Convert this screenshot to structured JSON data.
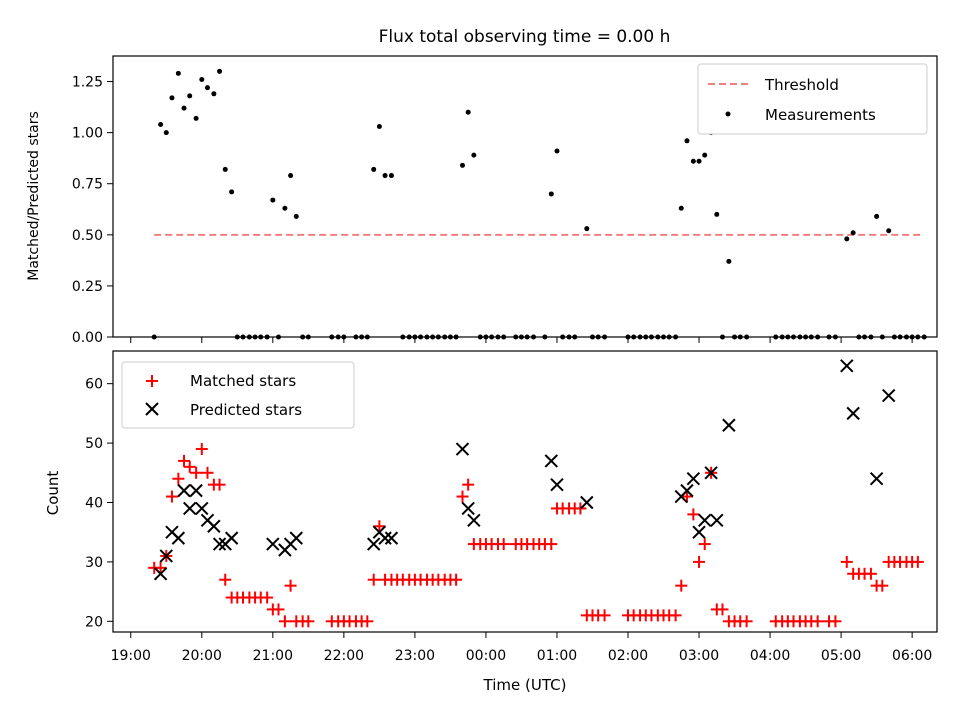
{
  "chart_data": [
    {
      "type": "scatter",
      "title": "Flux total observing time = 0.00 h",
      "ylabel": "Matched/Predicted stars",
      "xlabel": "",
      "ylim": [
        0,
        1.375
      ],
      "xlim": [
        -0.25,
        11.35
      ],
      "grid": false,
      "legend_position": "top-right",
      "yticks": [
        "0.00",
        "0.25",
        "0.50",
        "0.75",
        "1.00",
        "1.25"
      ],
      "threshold": {
        "name": "Threshold",
        "value": 0.5,
        "x_start": 0.33,
        "x_end": 11.17,
        "color": "#f08080",
        "style": "dashed"
      },
      "series": [
        {
          "name": "Measurements",
          "marker": "dot",
          "color": "#000000",
          "points": [
            [
              0.33,
              0.0
            ],
            [
              0.42,
              1.04
            ],
            [
              0.5,
              1.0
            ],
            [
              0.58,
              1.17
            ],
            [
              0.67,
              1.29
            ],
            [
              0.75,
              1.12
            ],
            [
              0.83,
              1.18
            ],
            [
              0.92,
              1.07
            ],
            [
              1.0,
              1.26
            ],
            [
              1.08,
              1.22
            ],
            [
              1.17,
              1.19
            ],
            [
              1.25,
              1.3
            ],
            [
              1.33,
              0.82
            ],
            [
              1.42,
              0.71
            ],
            [
              1.5,
              0.0
            ],
            [
              1.58,
              0.0
            ],
            [
              1.67,
              0.0
            ],
            [
              1.75,
              0.0
            ],
            [
              1.83,
              0.0
            ],
            [
              1.92,
              0.0
            ],
            [
              2.0,
              0.67
            ],
            [
              2.08,
              0.0
            ],
            [
              2.17,
              0.63
            ],
            [
              2.25,
              0.79
            ],
            [
              2.33,
              0.59
            ],
            [
              2.42,
              0.0
            ],
            [
              2.5,
              0.0
            ],
            [
              2.83,
              0.0
            ],
            [
              2.92,
              0.0
            ],
            [
              3.0,
              0.0
            ],
            [
              3.17,
              0.0
            ],
            [
              3.25,
              0.0
            ],
            [
              3.33,
              0.0
            ],
            [
              3.42,
              0.82
            ],
            [
              3.5,
              1.03
            ],
            [
              3.58,
              0.79
            ],
            [
              3.67,
              0.79
            ],
            [
              3.83,
              0.0
            ],
            [
              3.92,
              0.0
            ],
            [
              4.0,
              0.0
            ],
            [
              4.08,
              0.0
            ],
            [
              4.17,
              0.0
            ],
            [
              4.25,
              0.0
            ],
            [
              4.33,
              0.0
            ],
            [
              4.42,
              0.0
            ],
            [
              4.5,
              0.0
            ],
            [
              4.58,
              0.0
            ],
            [
              4.67,
              0.84
            ],
            [
              4.75,
              1.1
            ],
            [
              4.83,
              0.89
            ],
            [
              4.92,
              0.0
            ],
            [
              5.0,
              0.0
            ],
            [
              5.08,
              0.0
            ],
            [
              5.17,
              0.0
            ],
            [
              5.25,
              0.0
            ],
            [
              5.42,
              0.0
            ],
            [
              5.5,
              0.0
            ],
            [
              5.58,
              0.0
            ],
            [
              5.67,
              0.0
            ],
            [
              5.83,
              0.0
            ],
            [
              5.92,
              0.7
            ],
            [
              6.0,
              0.91
            ],
            [
              6.08,
              0.0
            ],
            [
              6.17,
              0.0
            ],
            [
              6.25,
              0.0
            ],
            [
              6.42,
              0.53
            ],
            [
              6.5,
              0.0
            ],
            [
              6.58,
              0.0
            ],
            [
              6.67,
              0.0
            ],
            [
              7.0,
              0.0
            ],
            [
              7.08,
              0.0
            ],
            [
              7.17,
              0.0
            ],
            [
              7.25,
              0.0
            ],
            [
              7.33,
              0.0
            ],
            [
              7.42,
              0.0
            ],
            [
              7.5,
              0.0
            ],
            [
              7.58,
              0.0
            ],
            [
              7.67,
              0.0
            ],
            [
              7.75,
              0.63
            ],
            [
              7.83,
              0.96
            ],
            [
              7.92,
              0.86
            ],
            [
              8.0,
              0.86
            ],
            [
              8.08,
              0.89
            ],
            [
              8.17,
              1.0
            ],
            [
              8.25,
              0.6
            ],
            [
              8.33,
              0.0
            ],
            [
              8.42,
              0.37
            ],
            [
              8.5,
              0.0
            ],
            [
              8.58,
              0.0
            ],
            [
              8.67,
              0.0
            ],
            [
              9.08,
              0.0
            ],
            [
              9.17,
              0.0
            ],
            [
              9.25,
              0.0
            ],
            [
              9.33,
              0.0
            ],
            [
              9.42,
              0.0
            ],
            [
              9.5,
              0.0
            ],
            [
              9.58,
              0.0
            ],
            [
              9.67,
              0.0
            ],
            [
              9.83,
              0.0
            ],
            [
              9.92,
              0.0
            ],
            [
              10.08,
              0.48
            ],
            [
              10.17,
              0.51
            ],
            [
              10.25,
              0.0
            ],
            [
              10.33,
              0.0
            ],
            [
              10.42,
              0.0
            ],
            [
              10.5,
              0.59
            ],
            [
              10.67,
              0.52
            ],
            [
              10.58,
              0.0
            ],
            [
              10.75,
              0.0
            ],
            [
              10.83,
              0.0
            ],
            [
              10.92,
              0.0
            ],
            [
              11.0,
              0.0
            ],
            [
              11.08,
              0.0
            ],
            [
              11.17,
              0.0
            ]
          ]
        }
      ]
    },
    {
      "type": "scatter",
      "title": "",
      "ylabel": "Count",
      "xlabel": "Time (UTC)",
      "ylim": [
        18.2,
        65.5
      ],
      "xlim": [
        -0.25,
        11.35
      ],
      "grid": false,
      "legend_position": "top-left",
      "xticks": [
        "19:00",
        "20:00",
        "21:00",
        "22:00",
        "23:00",
        "00:00",
        "01:00",
        "02:00",
        "03:00",
        "04:00",
        "05:00",
        "06:00"
      ],
      "yticks": [
        "20",
        "30",
        "40",
        "50",
        "60"
      ],
      "series": [
        {
          "name": "Matched stars",
          "marker": "plus",
          "color": "#ff0000",
          "points": [
            [
              0.33,
              29
            ],
            [
              0.42,
              29
            ],
            [
              0.5,
              31
            ],
            [
              0.58,
              41
            ],
            [
              0.67,
              44
            ],
            [
              0.75,
              47
            ],
            [
              0.83,
              46
            ],
            [
              0.92,
              45
            ],
            [
              1.0,
              49
            ],
            [
              1.08,
              45
            ],
            [
              1.17,
              43
            ],
            [
              1.25,
              43
            ],
            [
              1.33,
              27
            ],
            [
              1.42,
              24
            ],
            [
              1.5,
              24
            ],
            [
              1.58,
              24
            ],
            [
              1.67,
              24
            ],
            [
              1.75,
              24
            ],
            [
              1.83,
              24
            ],
            [
              1.92,
              24
            ],
            [
              2.0,
              22
            ],
            [
              2.08,
              22
            ],
            [
              2.17,
              20
            ],
            [
              2.25,
              26
            ],
            [
              2.33,
              20
            ],
            [
              2.42,
              20
            ],
            [
              2.5,
              20
            ],
            [
              2.83,
              20
            ],
            [
              2.92,
              20
            ],
            [
              3.0,
              20
            ],
            [
              3.08,
              20
            ],
            [
              3.17,
              20
            ],
            [
              3.25,
              20
            ],
            [
              3.33,
              20
            ],
            [
              3.42,
              27
            ],
            [
              3.5,
              36
            ],
            [
              3.58,
              27
            ],
            [
              3.67,
              27
            ],
            [
              3.75,
              27
            ],
            [
              3.83,
              27
            ],
            [
              3.92,
              27
            ],
            [
              4.0,
              27
            ],
            [
              4.08,
              27
            ],
            [
              4.17,
              27
            ],
            [
              4.25,
              27
            ],
            [
              4.33,
              27
            ],
            [
              4.42,
              27
            ],
            [
              4.5,
              27
            ],
            [
              4.58,
              27
            ],
            [
              4.67,
              41
            ],
            [
              4.75,
              43
            ],
            [
              4.83,
              33
            ],
            [
              4.92,
              33
            ],
            [
              5.0,
              33
            ],
            [
              5.08,
              33
            ],
            [
              5.17,
              33
            ],
            [
              5.25,
              33
            ],
            [
              5.42,
              33
            ],
            [
              5.5,
              33
            ],
            [
              5.58,
              33
            ],
            [
              5.67,
              33
            ],
            [
              5.75,
              33
            ],
            [
              5.83,
              33
            ],
            [
              5.92,
              33
            ],
            [
              6.0,
              39
            ],
            [
              6.08,
              39
            ],
            [
              6.17,
              39
            ],
            [
              6.25,
              39
            ],
            [
              6.33,
              39
            ],
            [
              6.42,
              21
            ],
            [
              6.5,
              21
            ],
            [
              6.58,
              21
            ],
            [
              6.67,
              21
            ],
            [
              7.0,
              21
            ],
            [
              7.08,
              21
            ],
            [
              7.17,
              21
            ],
            [
              7.25,
              21
            ],
            [
              7.33,
              21
            ],
            [
              7.42,
              21
            ],
            [
              7.5,
              21
            ],
            [
              7.58,
              21
            ],
            [
              7.67,
              21
            ],
            [
              7.75,
              26
            ],
            [
              7.83,
              41
            ],
            [
              7.92,
              38
            ],
            [
              8.0,
              30
            ],
            [
              8.08,
              33
            ],
            [
              8.17,
              45
            ],
            [
              8.25,
              22
            ],
            [
              8.33,
              22
            ],
            [
              8.42,
              20
            ],
            [
              8.5,
              20
            ],
            [
              8.58,
              20
            ],
            [
              8.67,
              20
            ],
            [
              9.08,
              20
            ],
            [
              9.17,
              20
            ],
            [
              9.25,
              20
            ],
            [
              9.33,
              20
            ],
            [
              9.42,
              20
            ],
            [
              9.5,
              20
            ],
            [
              9.58,
              20
            ],
            [
              9.67,
              20
            ],
            [
              9.83,
              20
            ],
            [
              9.92,
              20
            ],
            [
              10.08,
              30
            ],
            [
              10.17,
              28
            ],
            [
              10.25,
              28
            ],
            [
              10.33,
              28
            ],
            [
              10.42,
              28
            ],
            [
              10.5,
              26
            ],
            [
              10.58,
              26
            ],
            [
              10.67,
              30
            ],
            [
              10.75,
              30
            ],
            [
              10.83,
              30
            ],
            [
              10.92,
              30
            ],
            [
              11.0,
              30
            ],
            [
              11.08,
              30
            ]
          ]
        },
        {
          "name": "Predicted stars",
          "marker": "x",
          "color": "#000000",
          "points": [
            [
              0.42,
              28
            ],
            [
              0.5,
              31
            ],
            [
              0.58,
              35
            ],
            [
              0.67,
              34
            ],
            [
              0.75,
              42
            ],
            [
              0.83,
              39
            ],
            [
              0.92,
              42
            ],
            [
              1.0,
              39
            ],
            [
              1.08,
              37
            ],
            [
              1.17,
              36
            ],
            [
              1.25,
              33
            ],
            [
              1.33,
              33
            ],
            [
              1.42,
              34
            ],
            [
              2.0,
              33
            ],
            [
              2.17,
              32
            ],
            [
              2.25,
              33
            ],
            [
              2.33,
              34
            ],
            [
              3.42,
              33
            ],
            [
              3.5,
              35
            ],
            [
              3.58,
              34
            ],
            [
              3.67,
              34
            ],
            [
              4.67,
              49
            ],
            [
              4.75,
              39
            ],
            [
              4.83,
              37
            ],
            [
              5.92,
              47
            ],
            [
              6.0,
              43
            ],
            [
              6.42,
              40
            ],
            [
              7.75,
              41
            ],
            [
              7.83,
              42
            ],
            [
              7.92,
              44
            ],
            [
              8.0,
              35
            ],
            [
              8.08,
              37
            ],
            [
              8.17,
              45
            ],
            [
              8.25,
              37
            ],
            [
              8.42,
              53
            ],
            [
              10.08,
              63
            ],
            [
              10.17,
              55
            ],
            [
              10.5,
              44
            ],
            [
              10.67,
              58
            ]
          ]
        }
      ]
    }
  ]
}
